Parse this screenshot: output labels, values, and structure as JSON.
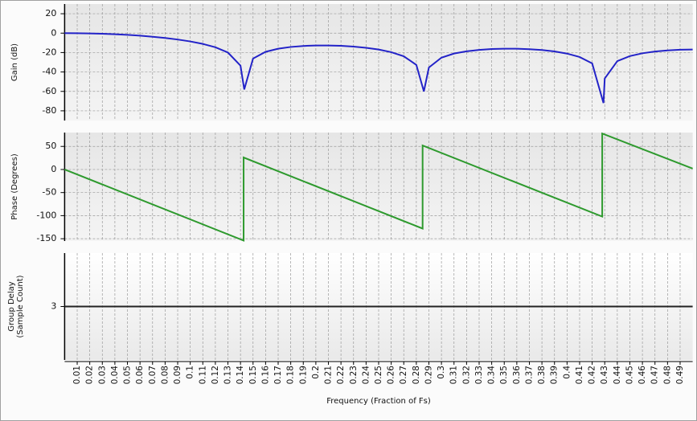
{
  "chart_data": [
    {
      "type": "line",
      "ylabel": "Gain (dB)",
      "color": "#2323c8",
      "x": [
        0,
        0.01,
        0.02,
        0.03,
        0.04,
        0.05,
        0.06,
        0.07,
        0.08,
        0.09,
        0.1,
        0.11,
        0.12,
        0.13,
        0.14,
        0.143,
        0.15,
        0.16,
        0.17,
        0.18,
        0.19,
        0.2,
        0.21,
        0.22,
        0.23,
        0.24,
        0.25,
        0.26,
        0.27,
        0.28,
        0.286,
        0.29,
        0.3,
        0.31,
        0.32,
        0.33,
        0.34,
        0.35,
        0.36,
        0.37,
        0.38,
        0.39,
        0.4,
        0.41,
        0.42,
        0.429,
        0.43,
        0.44,
        0.45,
        0.46,
        0.47,
        0.48,
        0.49,
        0.5
      ],
      "values": [
        0,
        -0.07,
        -0.28,
        -0.63,
        -1.13,
        -1.79,
        -2.63,
        -3.68,
        -4.97,
        -6.56,
        -8.54,
        -11.09,
        -14.56,
        -19.97,
        -33.5,
        -58,
        -26.2,
        -19.24,
        -16.04,
        -14.23,
        -13.2,
        -12.72,
        -12.69,
        -13.06,
        -13.84,
        -15.08,
        -16.9,
        -19.58,
        -23.81,
        -32.7,
        -60,
        -35.4,
        -25.26,
        -21.01,
        -18.72,
        -17.25,
        -16.39,
        -16.01,
        -16.05,
        -16.51,
        -17.42,
        -18.87,
        -21.08,
        -24.57,
        -31.17,
        -72,
        -46.7,
        -28.83,
        -23.65,
        -20.74,
        -18.91,
        -17.75,
        -17.11,
        -16.9
      ],
      "xlim": [
        0,
        0.5
      ],
      "ylim": [
        -90,
        30
      ],
      "yticks": [
        -80,
        -60,
        -40,
        -20,
        0,
        20
      ],
      "grid": true
    },
    {
      "type": "line",
      "ylabel": "Phase (Degrees)",
      "color": "#2e9a2e",
      "x": [
        0,
        0.1425,
        0.1425,
        0.285,
        0.285,
        0.428,
        0.428,
        0.5
      ],
      "values": [
        0,
        -154,
        26,
        -128,
        52,
        -102,
        78,
        2
      ],
      "xlim": [
        0,
        0.5
      ],
      "ylim": [
        -155,
        80
      ],
      "yticks": [
        -150,
        -100,
        -50,
        0,
        50
      ],
      "grid": true
    },
    {
      "type": "line",
      "ylabel": [
        "Group Delay",
        "(Sample Count)"
      ],
      "color": "#222222",
      "x": [
        0,
        0.5
      ],
      "values": [
        3,
        3
      ],
      "xlim": [
        0,
        0.5
      ],
      "ylim": [
        2,
        4
      ],
      "yticks": [
        3
      ],
      "grid": false,
      "xlabel": "Frequency (Fraction of Fs)",
      "xticks": [
        0.01,
        0.02,
        0.03,
        0.04,
        0.05,
        0.06,
        0.07,
        0.08,
        0.09,
        0.1,
        0.11,
        0.12,
        0.13,
        0.14,
        0.15,
        0.16,
        0.17,
        0.18,
        0.19,
        0.2,
        0.21,
        0.22,
        0.23,
        0.24,
        0.25,
        0.26,
        0.27,
        0.28,
        0.29,
        0.3,
        0.31,
        0.32,
        0.33,
        0.34,
        0.35,
        0.36,
        0.37,
        0.38,
        0.39,
        0.4,
        0.41,
        0.42,
        0.43,
        0.44,
        0.45,
        0.46,
        0.47,
        0.48,
        0.49
      ]
    }
  ]
}
